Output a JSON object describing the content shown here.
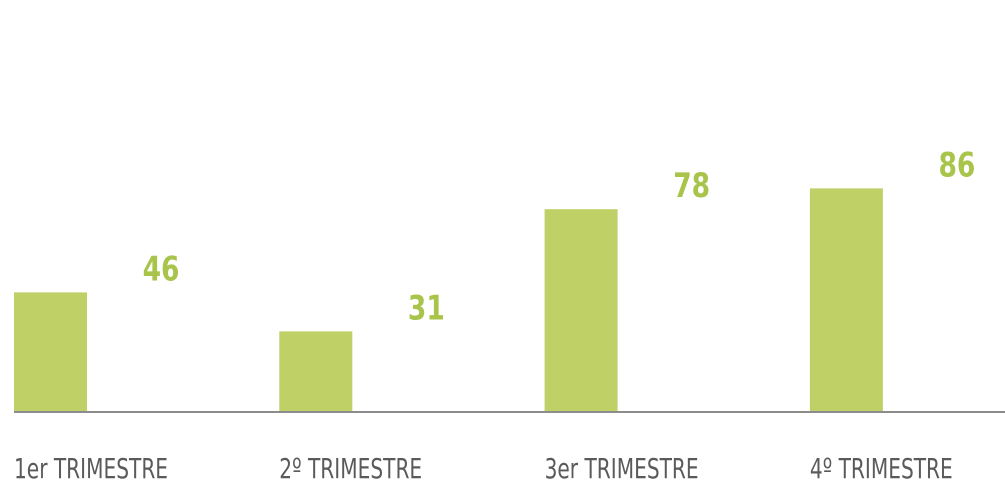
{
  "chart_data": {
    "type": "bar",
    "categories": [
      "1er TRIMESTRE",
      "2º TRIMESTRE",
      "3er TRIMESTRE",
      "4º TRIMESTRE"
    ],
    "values": [
      46,
      31,
      78,
      86
    ],
    "title": "",
    "xlabel": "",
    "ylabel": "",
    "ylim": [
      0,
      100
    ],
    "grid": false,
    "legend": "none",
    "data_labels": true
  },
  "colors": {
    "bar": "#bfd066",
    "value_label": "#a9c44a",
    "category_label": "#5a5a5a",
    "axis": "#8c8c8c"
  }
}
